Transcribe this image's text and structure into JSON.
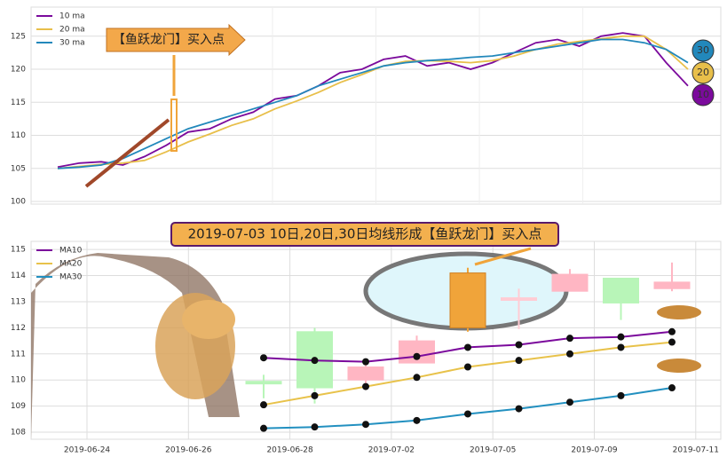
{
  "chart_data": [
    {
      "type": "line",
      "annotation": "【鱼跃龙门】买入点",
      "ylim": [
        99.6,
        129.4
      ],
      "yticks": [
        100,
        105,
        110,
        115,
        120,
        125
      ],
      "grid": true,
      "legend": "upper left",
      "series": [
        {
          "name": "10 ma",
          "label": "10",
          "color": "#7b0a9c",
          "values": [
            105.2,
            105.8,
            106.0,
            105.5,
            106.8,
            108.5,
            110.5,
            111.0,
            112.5,
            113.5,
            115.5,
            116.0,
            117.5,
            119.5,
            120.0,
            121.5,
            122.0,
            120.5,
            121.0,
            120.0,
            121.0,
            122.5,
            124.0,
            124.5,
            123.5,
            125.0,
            125.5,
            125.0,
            121.0,
            117.5
          ]
        },
        {
          "name": "20 ma",
          "label": "20",
          "color": "#e8bf4a",
          "values": [
            105.0,
            105.3,
            105.6,
            105.8,
            106.2,
            107.5,
            109.0,
            110.2,
            111.5,
            112.5,
            114.0,
            115.2,
            116.5,
            118.0,
            119.2,
            120.5,
            121.2,
            121.3,
            121.2,
            121.0,
            121.3,
            122.0,
            123.0,
            123.8,
            124.2,
            124.6,
            125.0,
            125.0,
            123.0,
            120.0
          ]
        },
        {
          "name": "30 ma",
          "label": "30",
          "color": "#2288bb",
          "values": [
            105.0,
            105.2,
            105.5,
            106.5,
            108.0,
            109.5,
            111.0,
            112.0,
            113.0,
            114.0,
            115.0,
            116.0,
            117.5,
            118.5,
            119.5,
            120.5,
            121.0,
            121.3,
            121.5,
            121.8,
            122.0,
            122.5,
            123.0,
            123.5,
            124.0,
            124.5,
            124.5,
            124.0,
            123.0,
            121.0
          ]
        }
      ]
    },
    {
      "type": "candlestick",
      "title": "2019-07-03 10日,20日,30日均线形成【鱼跃龙门】买入点",
      "categories": [
        null,
        null,
        null,
        null,
        null,
        null,
        null,
        null,
        null
      ],
      "x_labels": [
        "2019-06-24",
        "2019-06-26",
        "2019-06-28",
        "2019-07-02",
        "2019-07-05",
        "2019-07-09",
        "2019-07-11"
      ],
      "open": [
        109.85,
        109.7,
        110.5,
        111.5,
        112.0,
        113.15,
        114.05,
        113.9,
        113.75
      ],
      "close": [
        109.95,
        111.85,
        110.0,
        110.65,
        114.1,
        113.05,
        113.4,
        112.95,
        113.5
      ],
      "high": [
        110.2,
        112.0,
        110.7,
        111.7,
        114.3,
        113.5,
        114.25,
        113.9,
        114.5
      ],
      "low": [
        109.3,
        109.1,
        109.7,
        110.65,
        111.85,
        111.95,
        113.4,
        112.3,
        113.4
      ],
      "colors": [
        "#b8f5b8",
        "#b8f5b8",
        "#ffb6c3",
        "#ffb6c3",
        "#f0a43a",
        "#ffccd4",
        "#ffb6c3",
        "#b8f5b8",
        "#ffb6c3"
      ],
      "ylim": [
        107.73,
        115.31
      ],
      "yticks": [
        108,
        109,
        110,
        111,
        112,
        113,
        114,
        115
      ],
      "grid": true,
      "legend": "upper left",
      "series": [
        {
          "name": "MA10",
          "color": "#7b0a9c",
          "values": [
            110.85,
            110.75,
            110.7,
            110.9,
            111.25,
            111.35,
            111.6,
            111.65,
            111.85
          ]
        },
        {
          "name": "MA20",
          "color": "#e8c24a",
          "values": [
            109.05,
            109.4,
            109.75,
            110.1,
            110.5,
            110.75,
            111.0,
            111.25,
            111.45
          ]
        },
        {
          "name": "MA30",
          "color": "#2290c0",
          "values": [
            108.15,
            108.2,
            108.3,
            108.45,
            108.7,
            108.9,
            109.15,
            109.4,
            109.7
          ]
        }
      ]
    }
  ]
}
